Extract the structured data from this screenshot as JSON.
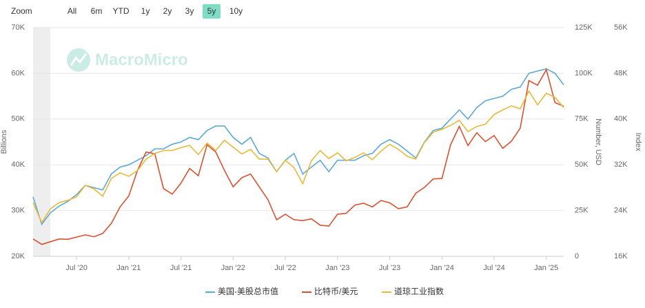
{
  "range_selector": {
    "label": "Zoom",
    "buttons": [
      "All",
      "6m",
      "YTD",
      "1y",
      "2y",
      "3y",
      "5y",
      "10y"
    ],
    "active": 6
  },
  "watermark": "MacroMicro",
  "chart_data": {
    "type": "line",
    "x": [
      "2020-02",
      "2020-03",
      "2020-04",
      "2020-05",
      "2020-06",
      "2020-07",
      "2020-08",
      "2020-09",
      "2020-10",
      "2020-11",
      "2020-12",
      "2021-01",
      "2021-02",
      "2021-03",
      "2021-04",
      "2021-05",
      "2021-06",
      "2021-07",
      "2021-08",
      "2021-09",
      "2021-10",
      "2021-11",
      "2021-12",
      "2022-01",
      "2022-02",
      "2022-03",
      "2022-04",
      "2022-05",
      "2022-06",
      "2022-07",
      "2022-08",
      "2022-09",
      "2022-10",
      "2022-11",
      "2022-12",
      "2023-01",
      "2023-02",
      "2023-03",
      "2023-04",
      "2023-05",
      "2023-06",
      "2023-07",
      "2023-08",
      "2023-09",
      "2023-10",
      "2023-11",
      "2023-12",
      "2024-01",
      "2024-02",
      "2024-03",
      "2024-04",
      "2024-05",
      "2024-06",
      "2024-07",
      "2024-08",
      "2024-09",
      "2024-10",
      "2024-11",
      "2024-12",
      "2025-01",
      "2025-02",
      "2025-03"
    ],
    "xlim": [
      "2020-02",
      "2025-03"
    ],
    "xticks": [
      {
        "value": "2020-07",
        "label": "Jul '20"
      },
      {
        "value": "2021-01",
        "label": "Jan '21"
      },
      {
        "value": "2021-07",
        "label": "Jul '21"
      },
      {
        "value": "2022-01",
        "label": "Jan '22"
      },
      {
        "value": "2022-07",
        "label": "Jul '22"
      },
      {
        "value": "2023-01",
        "label": "Jan '23"
      },
      {
        "value": "2023-07",
        "label": "Jul '23"
      },
      {
        "value": "2024-01",
        "label": "Jan '24"
      },
      {
        "value": "2024-07",
        "label": "Jul '24"
      },
      {
        "value": "2025-01",
        "label": "Jan '25"
      }
    ],
    "ylabel": "Billions",
    "ylim": [
      20000,
      70000
    ],
    "yticks": [
      {
        "value": 20000,
        "label": "20K"
      },
      {
        "value": 30000,
        "label": "30K"
      },
      {
        "value": 40000,
        "label": "40K"
      },
      {
        "value": 50000,
        "label": "50K"
      },
      {
        "value": 60000,
        "label": "60K"
      },
      {
        "value": 70000,
        "label": "70K"
      }
    ],
    "y2label": "Number, USD",
    "y2lim": [
      0,
      125000
    ],
    "y2ticks": [
      0,
      {
        "value": 25000,
        "label": "25K"
      },
      {
        "value": 50000,
        "label": "50K"
      },
      {
        "value": 75000,
        "label": "75K"
      },
      {
        "value": 100000,
        "label": "100K"
      },
      {
        "value": 125000,
        "label": "125K"
      }
    ],
    "y3label": "Index",
    "y3lim": [
      16000,
      56000
    ],
    "y3ticks": [
      {
        "value": 16000,
        "label": "16K"
      },
      {
        "value": 24000,
        "label": "24K"
      },
      {
        "value": 32000,
        "label": "32K"
      },
      {
        "value": 40000,
        "label": "40K"
      },
      {
        "value": 48000,
        "label": "48K"
      },
      {
        "value": 56000,
        "label": "56K"
      }
    ],
    "grid": true,
    "series": [
      {
        "name": "美国-美股总市值",
        "color": "#5aa8d6",
        "axis": "y",
        "values": [
          33000,
          27000,
          29500,
          31000,
          32000,
          33500,
          35500,
          35000,
          34500,
          38000,
          39500,
          40000,
          41000,
          42000,
          43500,
          43500,
          44500,
          45000,
          46000,
          45500,
          47500,
          48500,
          48500,
          46000,
          44500,
          46000,
          42500,
          41500,
          38500,
          41000,
          42500,
          38000,
          39500,
          41000,
          38500,
          41000,
          41000,
          41000,
          42000,
          42500,
          44500,
          45500,
          44500,
          43000,
          41500,
          45000,
          47500,
          48000,
          50000,
          52000,
          50000,
          52500,
          54000,
          54500,
          55000,
          56500,
          57000,
          60000,
          60500,
          61000,
          60000,
          57500
        ]
      },
      {
        "name": "比特币/美元",
        "color": "#d9502f",
        "axis": "y2",
        "values": [
          9500,
          6500,
          8000,
          9500,
          9300,
          10500,
          11700,
          10700,
          12500,
          18000,
          27000,
          33000,
          47000,
          57000,
          56000,
          37000,
          34000,
          40000,
          48000,
          44000,
          61000,
          57000,
          47000,
          38000,
          43000,
          45000,
          38000,
          31000,
          20000,
          23000,
          20000,
          19500,
          20500,
          17000,
          16500,
          23000,
          23500,
          28000,
          29000,
          27000,
          30500,
          29200,
          26000,
          27000,
          34500,
          37700,
          42300,
          42500,
          61000,
          71000,
          60500,
          67500,
          62700,
          66000,
          59000,
          63000,
          70000,
          96000,
          93500,
          102000,
          84000,
          82000
        ]
      },
      {
        "name": "道琼工业指数",
        "color": "#e8b83a",
        "axis": "y3",
        "values": [
          25400,
          21900,
          24300,
          25400,
          25800,
          26400,
          28400,
          27800,
          26500,
          29600,
          30600,
          30000,
          31000,
          33000,
          34000,
          34500,
          34500,
          35000,
          35400,
          33800,
          35800,
          34500,
          36300,
          35100,
          33900,
          34700,
          33000,
          33000,
          30800,
          32800,
          31500,
          28700,
          32700,
          34500,
          33100,
          34100,
          32700,
          33300,
          34100,
          32900,
          34400,
          35600,
          34700,
          33500,
          33000,
          35900,
          37700,
          38200,
          38900,
          39800,
          37800,
          38700,
          39100,
          40800,
          41600,
          42300,
          41800,
          44900,
          42500,
          44500,
          43800,
          42000
        ]
      }
    ]
  }
}
